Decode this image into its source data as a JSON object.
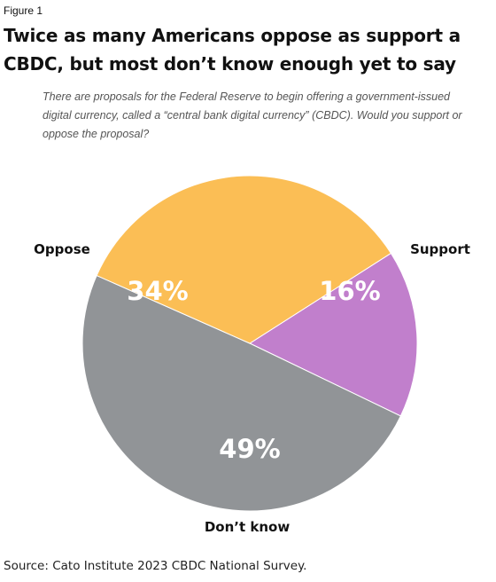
{
  "figure_label": "Figure 1",
  "title": "Twice as many Americans oppose as support a CBDC, but most don’t know enough yet to say",
  "subtitle": "There are proposals for the Federal Reserve to begin offering a government-issued digital currency, called a “central bank digital currency” (CBDC). Would you support or oppose the proposal?",
  "source": "Source: Cato Institute 2023 CBDC National Survey.",
  "chart_data": {
    "type": "pie",
    "title": "Twice as many Americans oppose as support a CBDC, but most don’t know enough yet to say",
    "slices": [
      {
        "label": "Support",
        "value": 16,
        "display": "16%",
        "color": "#c17fcc"
      },
      {
        "label": "Don’t know",
        "value": 49,
        "display": "49%",
        "color": "#919497"
      },
      {
        "label": "Oppose",
        "value": 34,
        "display": "34%",
        "color": "#fbbe55"
      }
    ]
  }
}
